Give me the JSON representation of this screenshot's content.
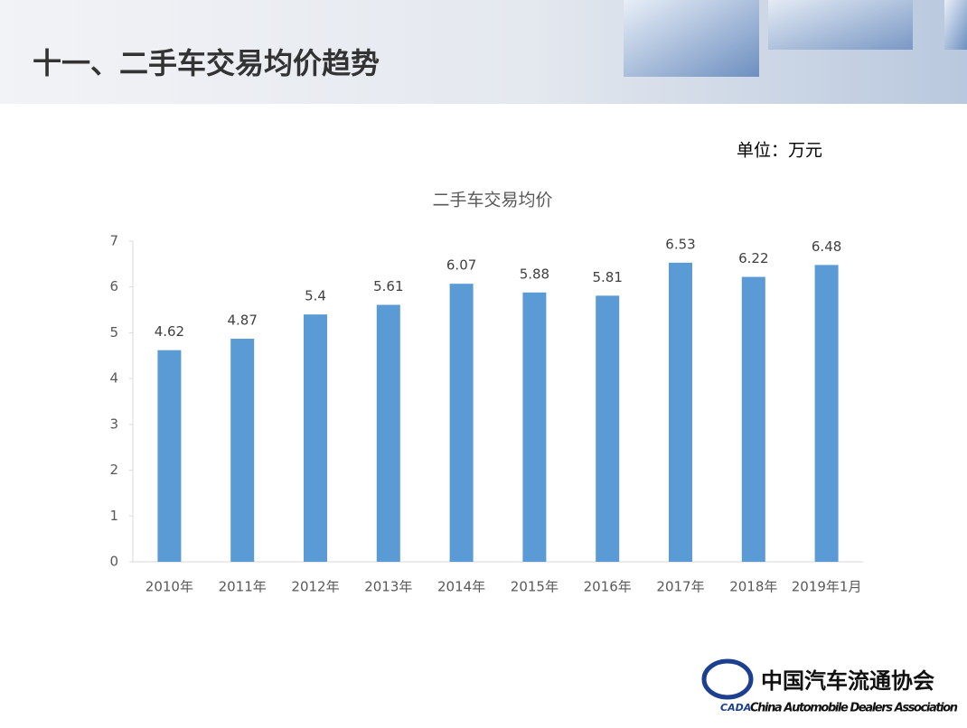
{
  "header": {
    "title": "十一、二手车交易均价趋势"
  },
  "unit": "单位：万元",
  "chart_data": {
    "type": "bar",
    "title": "二手车交易均价",
    "categories": [
      "2010年",
      "2011年",
      "2012年",
      "2013年",
      "2014年",
      "2015年",
      "2016年",
      "2017年",
      "2018年",
      "2019年1月"
    ],
    "values": [
      4.62,
      4.87,
      5.4,
      5.61,
      6.07,
      5.88,
      5.81,
      6.53,
      6.22,
      6.48
    ],
    "color": "#5b9bd5",
    "ylim": [
      0,
      7
    ],
    "yticks": [
      0,
      1,
      2,
      3,
      4,
      5,
      6,
      7
    ],
    "grid": false
  },
  "logo": {
    "abbr": "CADA",
    "name_cn": "中国汽车流通协会",
    "name_en": "China Automobile Dealers Association"
  }
}
